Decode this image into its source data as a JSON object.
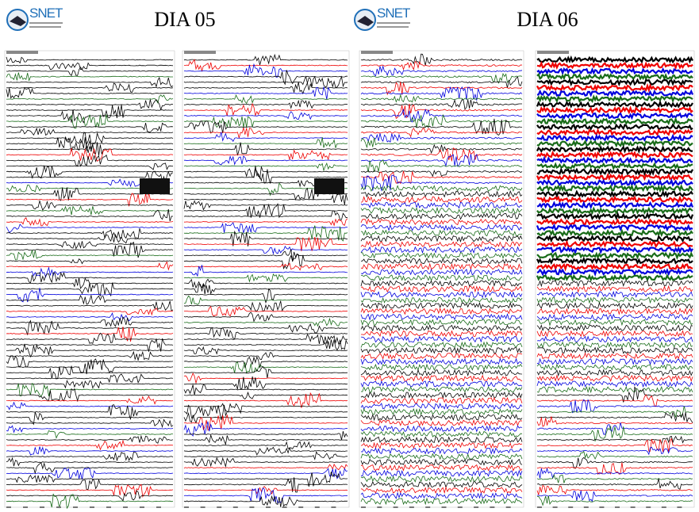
{
  "panels": [
    {
      "logo": "SNET",
      "title": "DIA 05"
    },
    {
      "logo": "SNET",
      "title": "DIA 06"
    }
  ]
}
